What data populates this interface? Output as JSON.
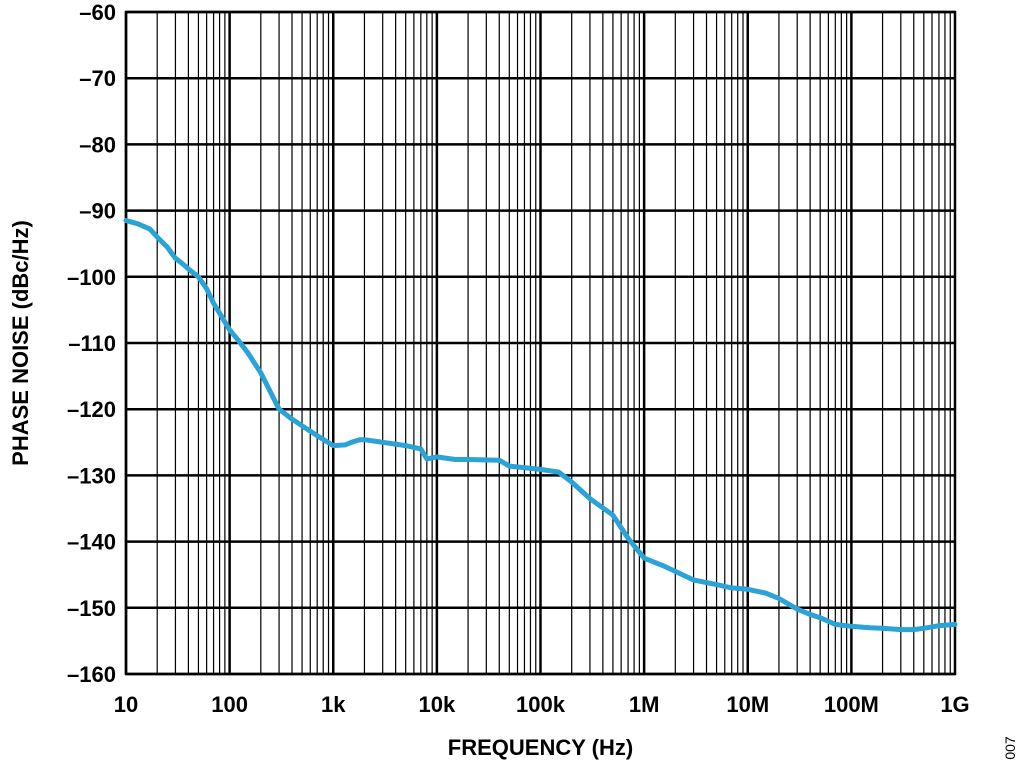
{
  "chart_data": {
    "type": "line",
    "title": "",
    "xlabel": "FREQUENCY (Hz)",
    "ylabel": "PHASE NOISE (dBc/Hz)",
    "x_scale": "log",
    "xlim": [
      10,
      1000000000
    ],
    "ylim": [
      -160,
      -60
    ],
    "x_ticks": [
      {
        "value": 10,
        "label": "10"
      },
      {
        "value": 100,
        "label": "100"
      },
      {
        "value": 1000,
        "label": "1k"
      },
      {
        "value": 10000,
        "label": "10k"
      },
      {
        "value": 100000,
        "label": "100k"
      },
      {
        "value": 1000000,
        "label": "1M"
      },
      {
        "value": 10000000,
        "label": "10M"
      },
      {
        "value": 100000000,
        "label": "100M"
      },
      {
        "value": 1000000000,
        "label": "1G"
      }
    ],
    "y_ticks": [
      {
        "value": -60,
        "label": "–60"
      },
      {
        "value": -70,
        "label": "–70"
      },
      {
        "value": -80,
        "label": "–80"
      },
      {
        "value": -90,
        "label": "–90"
      },
      {
        "value": -100,
        "label": "–100"
      },
      {
        "value": -110,
        "label": "–110"
      },
      {
        "value": -120,
        "label": "–120"
      },
      {
        "value": -130,
        "label": "–130"
      },
      {
        "value": -140,
        "label": "–140"
      },
      {
        "value": -150,
        "label": "–150"
      },
      {
        "value": -160,
        "label": "–160"
      }
    ],
    "grid": true,
    "legend": false,
    "line_color": "#2ba3d6",
    "series": [
      {
        "x": [
          10,
          13,
          17,
          20,
          25,
          30,
          35,
          40,
          50,
          60,
          70,
          80,
          100,
          120,
          150,
          200,
          300,
          400,
          500,
          700,
          1000,
          1300,
          1500,
          1800,
          2000,
          3000,
          5000,
          7000,
          8000,
          10000,
          15000,
          20000,
          40000,
          50000,
          100000,
          150000,
          200000,
          300000,
          500000,
          700000,
          1000000,
          1500000,
          2000000,
          3000000,
          5000000,
          7000000,
          10000000,
          15000000,
          20000000,
          30000000,
          40000000,
          50000000,
          70000000,
          100000000,
          150000000,
          200000000,
          300000000,
          400000000,
          500000000,
          700000000,
          1000000000
        ],
        "y": [
          -91.5,
          -92,
          -92.8,
          -94,
          -95.5,
          -97.2,
          -98,
          -98.8,
          -100,
          -101.8,
          -104,
          -105.5,
          -108,
          -109.5,
          -111.5,
          -114.5,
          -120,
          -121.5,
          -122.5,
          -124,
          -125.5,
          -125.4,
          -125,
          -124.6,
          -124.6,
          -125,
          -125.5,
          -126,
          -127.5,
          -127.2,
          -127.6,
          -127.6,
          -127.7,
          -128.6,
          -129.1,
          -129.5,
          -131,
          -133.5,
          -136,
          -139.5,
          -142.5,
          -143.6,
          -144.5,
          -145.8,
          -146.5,
          -147,
          -147.2,
          -147.8,
          -148.6,
          -150.2,
          -151,
          -151.5,
          -152.5,
          -152.8,
          -153,
          -153.1,
          -153.3,
          -153.3,
          -153.1,
          -152.7,
          -152.5
        ]
      }
    ]
  },
  "corner_code": "007"
}
